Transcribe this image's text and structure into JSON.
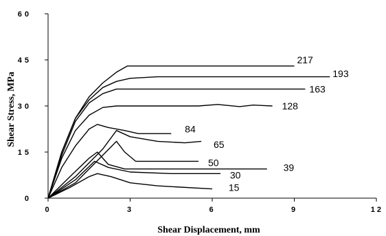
{
  "chart_data": {
    "type": "line",
    "title": "",
    "xlabel": "Shear Displacement, mm",
    "ylabel": "Shear Stress, MPa",
    "xlim": [
      0,
      12
    ],
    "ylim": [
      0,
      60
    ],
    "xticks": [
      "0",
      "3",
      "6",
      "9",
      "12"
    ],
    "yticks": [
      "0",
      "15",
      "30",
      "45",
      "60"
    ],
    "grid": false,
    "legend": "none",
    "series": [
      {
        "name": "217",
        "x": [
          0,
          0.5,
          1,
          1.5,
          2,
          2.5,
          2.9,
          3.1,
          9
        ],
        "y": [
          0,
          15,
          26,
          33,
          37.5,
          41,
          43,
          43,
          43
        ]
      },
      {
        "name": "193",
        "x": [
          0,
          0.5,
          1,
          1.5,
          2,
          2.5,
          3,
          4,
          10.3
        ],
        "y": [
          0,
          15,
          26,
          32,
          36,
          38,
          39,
          39.5,
          39.5
        ]
      },
      {
        "name": "163",
        "x": [
          0,
          0.5,
          1,
          1.5,
          2,
          2.5,
          3,
          9.4
        ],
        "y": [
          0,
          14,
          25,
          31,
          34,
          35.5,
          35.5,
          35.5
        ]
      },
      {
        "name": "128",
        "x": [
          0,
          0.5,
          1,
          1.5,
          2,
          2.5,
          3,
          5.5,
          6.2,
          7,
          7.5,
          8.2
        ],
        "y": [
          0,
          13,
          22,
          27,
          29.5,
          30,
          30,
          30,
          30.5,
          29.8,
          30.3,
          30
        ]
      },
      {
        "name": "84",
        "x": [
          0,
          0.5,
          1,
          1.5,
          1.8,
          2.2,
          2.8,
          3.3,
          4.5
        ],
        "y": [
          0,
          10,
          17,
          22.5,
          24,
          23,
          22,
          21,
          21
        ]
      },
      {
        "name": "65",
        "x": [
          0,
          1,
          2,
          2.5,
          3,
          4,
          5,
          5.6
        ],
        "y": [
          0,
          7,
          16,
          22,
          20,
          18.5,
          18,
          18.5
        ]
      },
      {
        "name": "50",
        "x": [
          0,
          1,
          2,
          2.5,
          2.8,
          3.2,
          4,
          5.5
        ],
        "y": [
          0,
          5,
          14,
          18.5,
          15,
          12,
          12,
          12
        ]
      },
      {
        "name": "39",
        "x": [
          0,
          0.8,
          1.5,
          1.8,
          2.2,
          2.8,
          4,
          8
        ],
        "y": [
          0,
          7,
          13,
          15,
          11,
          9.5,
          9.5,
          9.5
        ]
      },
      {
        "name": "30",
        "x": [
          0,
          1,
          1.7,
          2.2,
          3,
          4.5,
          6.3
        ],
        "y": [
          0,
          6,
          12,
          10,
          8.5,
          8,
          8
        ]
      },
      {
        "name": "15",
        "x": [
          0,
          0.8,
          1.5,
          1.8,
          2.3,
          3,
          4,
          6
        ],
        "y": [
          0,
          3.5,
          7,
          8,
          7,
          5,
          4,
          3
        ]
      }
    ],
    "end_labels": [
      {
        "text": "217",
        "x": 9.1,
        "y": 45
      },
      {
        "text": "193",
        "x": 10.4,
        "y": 40.5
      },
      {
        "text": "163",
        "x": 9.55,
        "y": 35.5
      },
      {
        "text": "128",
        "x": 8.55,
        "y": 30
      },
      {
        "text": "84",
        "x": 5.0,
        "y": 22.5
      },
      {
        "text": "65",
        "x": 6.05,
        "y": 17.5
      },
      {
        "text": "50",
        "x": 5.85,
        "y": 11.5
      },
      {
        "text": "39",
        "x": 8.6,
        "y": 10
      },
      {
        "text": "30",
        "x": 6.65,
        "y": 7.5
      },
      {
        "text": "15",
        "x": 6.6,
        "y": 3.5
      }
    ]
  }
}
